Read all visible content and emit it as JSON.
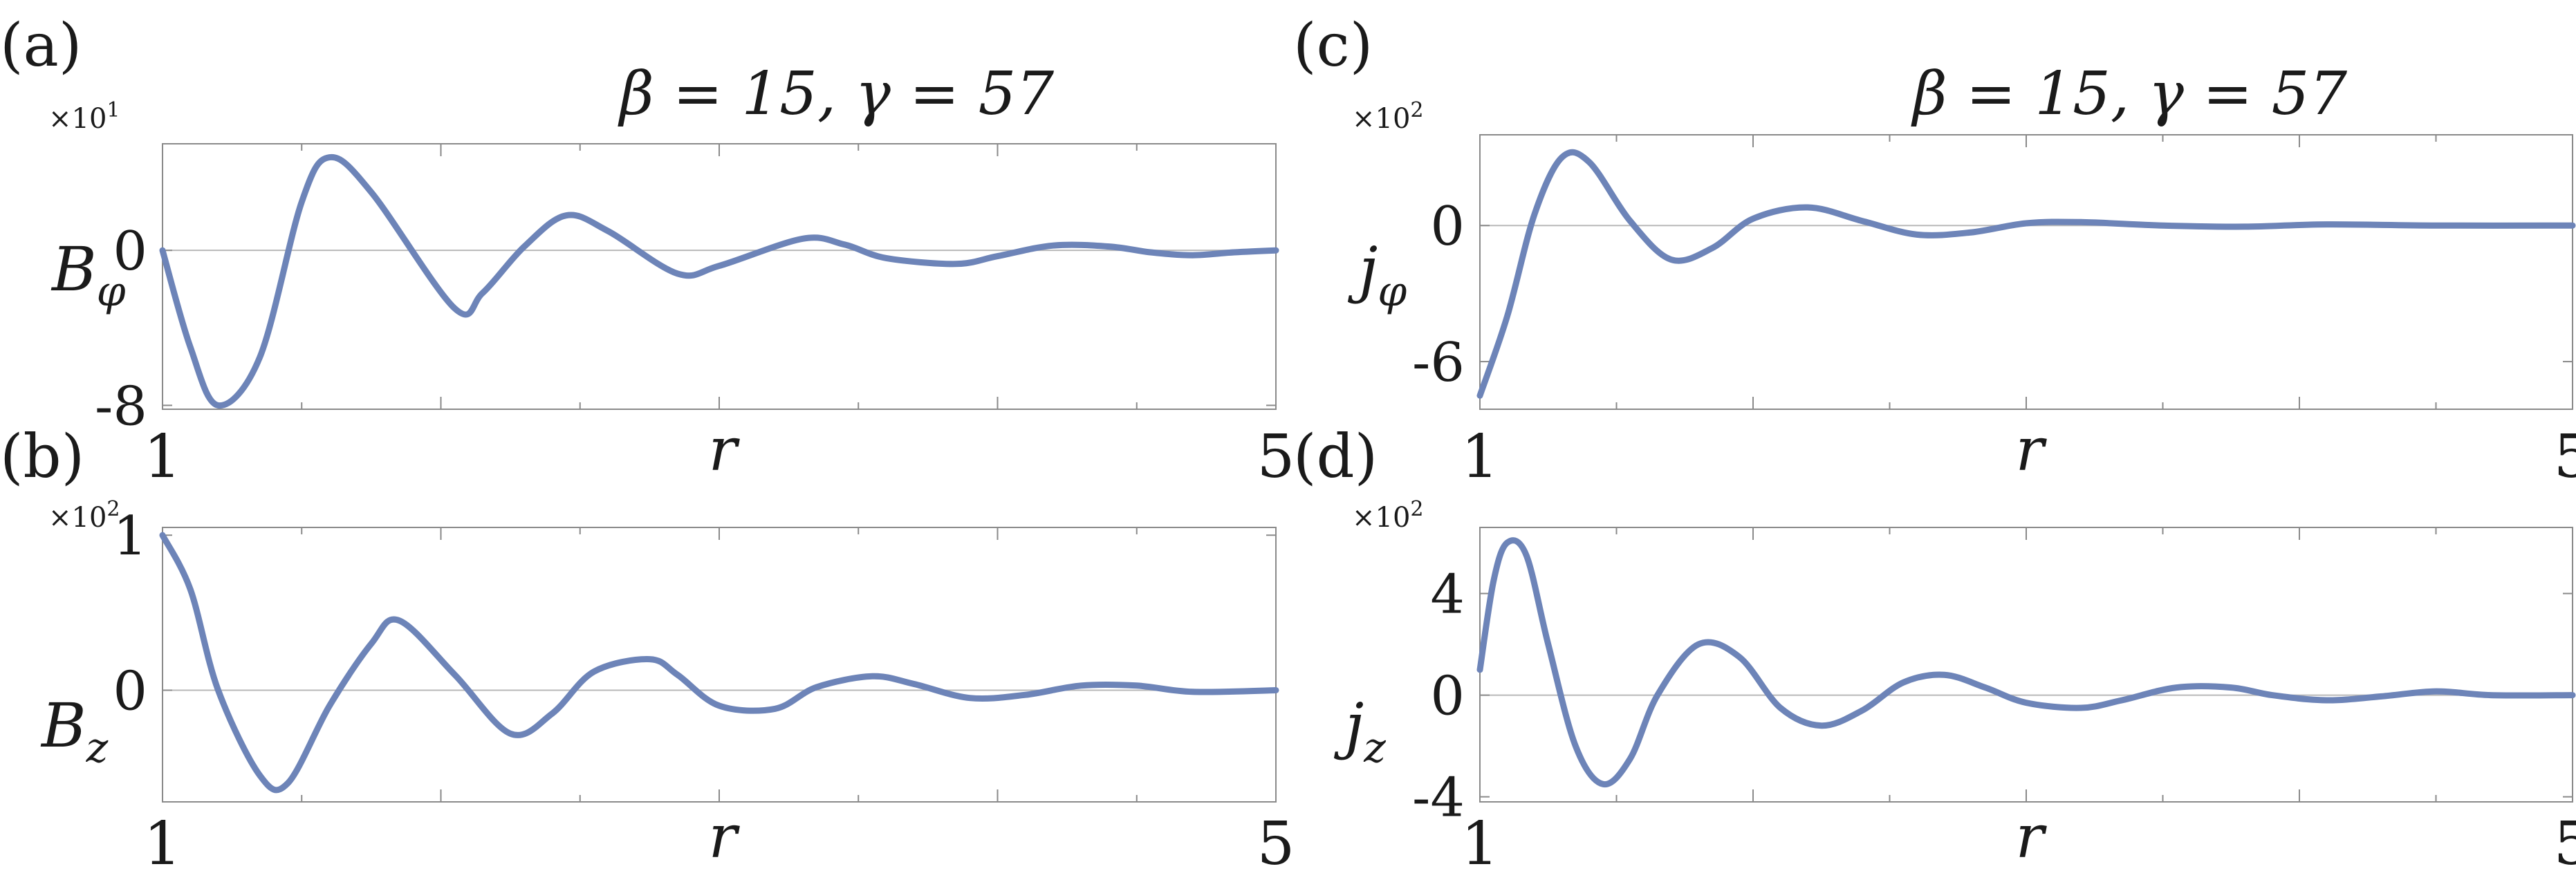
{
  "chart_data": [
    {
      "id": "a",
      "type": "line",
      "panel_label": "(a)",
      "title": "β = 15,    γ = 57",
      "ylabel": "Bφ",
      "ylabel_main": "B",
      "ylabel_sub": "φ",
      "xlabel": "r",
      "y_multiplier": "×10¹",
      "y_multiplier_base": "×10",
      "y_multiplier_exp": "1",
      "xlim": [
        1,
        5
      ],
      "ylim": [
        -8.2,
        5.5
      ],
      "xticks": [
        1,
        5
      ],
      "xtick_labels": [
        "1",
        "5"
      ],
      "yticks": [
        0,
        -8
      ],
      "ytick_labels": [
        "0",
        "-8"
      ],
      "series": [
        {
          "values_x": [
            1.0,
            1.1,
            1.2,
            1.35,
            1.5,
            1.6,
            1.75,
            2.05,
            2.15,
            2.3,
            2.45,
            2.6,
            2.85,
            3.0,
            3.3,
            3.45,
            3.6,
            3.85,
            4.0,
            4.2,
            4.4,
            4.55,
            4.7,
            4.85,
            5.0
          ],
          "values_y": [
            0.0,
            -5.0,
            -8.0,
            -5.5,
            2.5,
            4.8,
            3.0,
            -3.0,
            -2.2,
            0.2,
            1.8,
            1.0,
            -1.2,
            -0.8,
            0.6,
            0.3,
            -0.4,
            -0.7,
            -0.3,
            0.25,
            0.2,
            -0.1,
            -0.25,
            -0.1,
            0.0
          ]
        }
      ]
    },
    {
      "id": "b",
      "type": "line",
      "panel_label": "(b)",
      "title": "",
      "ylabel": "Bz",
      "ylabel_main": "B",
      "ylabel_sub": "z",
      "xlabel": "r",
      "y_multiplier": "×10²",
      "y_multiplier_base": "×10",
      "y_multiplier_exp": "2",
      "xlim": [
        1,
        5
      ],
      "ylim": [
        -0.72,
        1.05
      ],
      "xticks": [
        1,
        5
      ],
      "xtick_labels": [
        "1",
        "5"
      ],
      "yticks": [
        1,
        0
      ],
      "ytick_labels": [
        "1",
        "0"
      ],
      "series": [
        {
          "values_x": [
            1.0,
            1.1,
            1.2,
            1.35,
            1.45,
            1.6,
            1.75,
            1.85,
            2.05,
            2.25,
            2.4,
            2.55,
            2.75,
            2.85,
            3.0,
            3.2,
            3.35,
            3.55,
            3.7,
            3.9,
            4.1,
            4.3,
            4.5,
            4.7,
            5.0
          ],
          "values_y": [
            1.0,
            0.65,
            0.0,
            -0.55,
            -0.6,
            -0.1,
            0.3,
            0.45,
            0.1,
            -0.28,
            -0.15,
            0.12,
            0.2,
            0.1,
            -0.1,
            -0.12,
            0.02,
            0.09,
            0.04,
            -0.05,
            -0.03,
            0.03,
            0.03,
            -0.01,
            0.0
          ]
        }
      ]
    },
    {
      "id": "c",
      "type": "line",
      "panel_label": "(c)",
      "title": "β = 15,    γ = 57",
      "ylabel": "jφ",
      "ylabel_main": "j",
      "ylabel_sub": "φ",
      "xlabel": "r",
      "y_multiplier": "×10²",
      "y_multiplier_base": "×10",
      "y_multiplier_exp": "2",
      "xlim": [
        1,
        5
      ],
      "ylim": [
        -8.1,
        4.0
      ],
      "xticks": [
        1,
        5
      ],
      "xtick_labels": [
        "1",
        "5"
      ],
      "yticks": [
        0,
        -6
      ],
      "ytick_labels": [
        "0",
        "-6"
      ],
      "series": [
        {
          "values_x": [
            1.0,
            1.1,
            1.2,
            1.3,
            1.4,
            1.55,
            1.7,
            1.85,
            2.0,
            2.2,
            2.4,
            2.6,
            2.8,
            3.0,
            3.2,
            3.5,
            3.8,
            4.1,
            4.5,
            5.0
          ],
          "values_y": [
            -7.5,
            -4.0,
            0.5,
            3.0,
            2.8,
            0.2,
            -1.5,
            -1.0,
            0.3,
            0.8,
            0.2,
            -0.4,
            -0.3,
            0.1,
            0.15,
            0.0,
            -0.05,
            0.05,
            0.0,
            0.0
          ]
        }
      ]
    },
    {
      "id": "d",
      "type": "line",
      "panel_label": "(d)",
      "title": "",
      "ylabel": "jz",
      "ylabel_main": "j",
      "ylabel_sub": "z",
      "xlabel": "r",
      "y_multiplier": "×10²",
      "y_multiplier_base": "×10",
      "y_multiplier_exp": "2",
      "xlim": [
        1,
        5
      ],
      "ylim": [
        -4.2,
        6.6
      ],
      "xticks": [
        1,
        5
      ],
      "xtick_labels": [
        "1",
        "5"
      ],
      "yticks": [
        4,
        0,
        -4
      ],
      "ytick_labels": [
        "4",
        "0",
        "-4"
      ],
      "series": [
        {
          "values_x": [
            1.0,
            1.05,
            1.1,
            1.17,
            1.25,
            1.35,
            1.45,
            1.55,
            1.65,
            1.8,
            1.95,
            2.1,
            2.25,
            2.4,
            2.55,
            2.7,
            2.85,
            3.0,
            3.2,
            3.35,
            3.55,
            3.75,
            3.9,
            4.1,
            4.3,
            4.5,
            4.7,
            5.0
          ],
          "values_y": [
            1.0,
            4.5,
            6.0,
            5.5,
            2.0,
            -2.0,
            -3.5,
            -2.5,
            0.0,
            2.0,
            1.5,
            -0.5,
            -1.2,
            -0.6,
            0.5,
            0.8,
            0.3,
            -0.3,
            -0.5,
            -0.2,
            0.3,
            0.3,
            0.0,
            -0.2,
            -0.05,
            0.15,
            0.0,
            0.0
          ]
        }
      ]
    }
  ]
}
